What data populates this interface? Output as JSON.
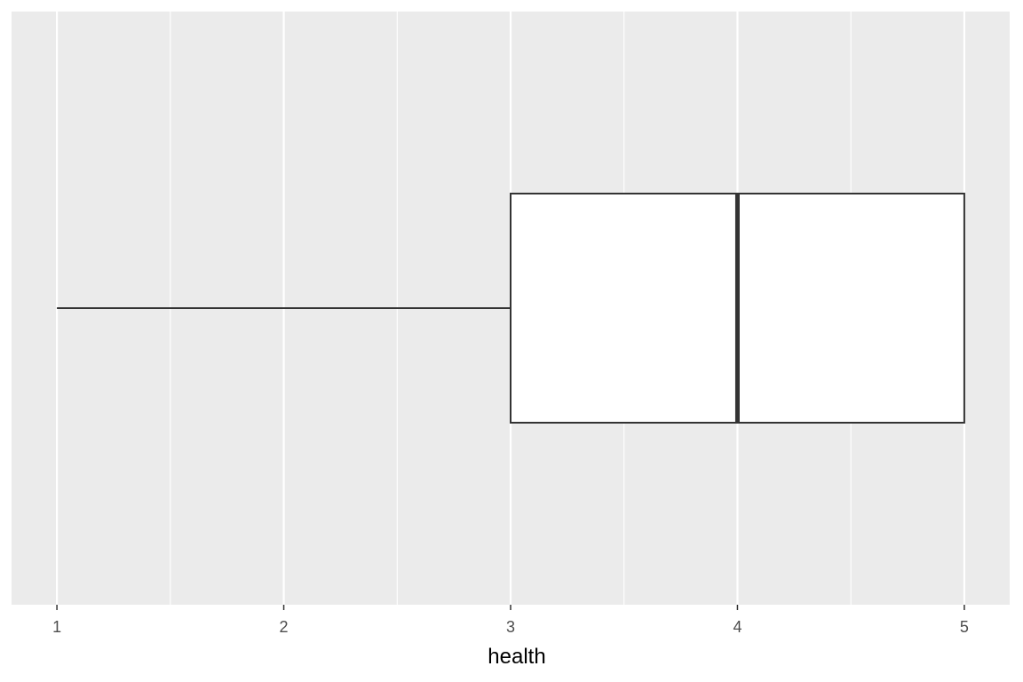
{
  "chart_data": {
    "type": "boxplot",
    "orientation": "horizontal",
    "xlabel": "health",
    "ylabel": "",
    "title": "",
    "xlim": [
      0.8,
      5.2
    ],
    "x_ticks": [
      1,
      2,
      3,
      4,
      5
    ],
    "x_tick_labels": [
      "1",
      "2",
      "3",
      "4",
      "5"
    ],
    "grid": true,
    "box": {
      "min": 1,
      "q1": 3,
      "median": 4,
      "q3": 5,
      "max": 5
    },
    "colors": {
      "panel_background": "#ebebeb",
      "grid_major": "#ffffff",
      "grid_minor": "#ffffff",
      "box_fill": "#ffffff",
      "box_outline": "#333333",
      "tick_label": "#4d4d4d",
      "axis_title": "#000000"
    }
  }
}
